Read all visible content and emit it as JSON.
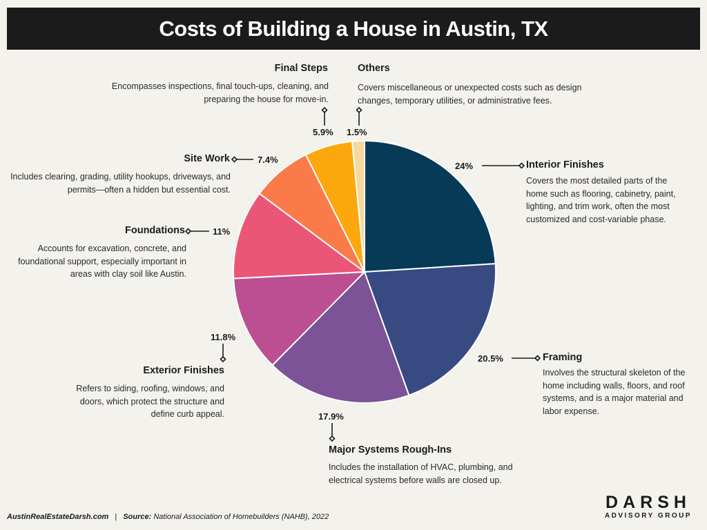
{
  "title": "Costs of Building a House in Austin, TX",
  "chart_data": {
    "type": "pie",
    "title": "Costs of Building a House in Austin, TX",
    "slices": [
      {
        "name": "Interior Finishes",
        "value": 24,
        "label": "24%",
        "color": "#063a57",
        "description": "Covers the most detailed parts of the home such as flooring, cabinetry, paint, lighting, and trim work, often the most customized and cost-variable phase."
      },
      {
        "name": "Framing",
        "value": 20.5,
        "label": "20.5%",
        "color": "#374b82",
        "description": "Involves the structural skeleton of the home including walls, floors, and roof systems, and is a major material and labor expense."
      },
      {
        "name": "Major Systems Rough-Ins",
        "value": 17.9,
        "label": "17.9%",
        "color": "#7b5396",
        "description": "Includes the installation of HVAC, plumbing, and electrical systems before walls are closed up."
      },
      {
        "name": "Exterior Finishes",
        "value": 11.8,
        "label": "11.8%",
        "color": "#bc4e92",
        "description": "Refers to siding, roofing, windows, and doors, which protect the structure and define curb appeal."
      },
      {
        "name": "Foundations",
        "value": 11,
        "label": "11%",
        "color": "#ec5676",
        "description": "Accounts for excavation, concrete, and foundational support, especially important in areas with clay soil like Austin."
      },
      {
        "name": "Site Work",
        "value": 7.4,
        "label": "7.4%",
        "color": "#fb7a4a",
        "description": "Includes clearing, grading, utility hookups, driveways, and permits—often a hidden but essential cost."
      },
      {
        "name": "Final Steps",
        "value": 5.9,
        "label": "5.9%",
        "color": "#fda70f",
        "description": "Encompasses inspections, final touch-ups, cleaning, and preparing the house for move-in."
      },
      {
        "name": "Others",
        "value": 1.5,
        "label": "1.5%",
        "color": "#f6d89a",
        "description": "Covers miscellaneous or unexpected costs such as design changes, temporary utilities, or administrative fees."
      }
    ]
  },
  "footer": {
    "site": "AustinRealEstateDarsh.com",
    "separator": "|",
    "source_label": "Source:",
    "source_text": "National Association of Homebuilders (NAHB), 2022"
  },
  "brand": {
    "name": "DARSH",
    "sub": "ADVISORY GROUP"
  }
}
